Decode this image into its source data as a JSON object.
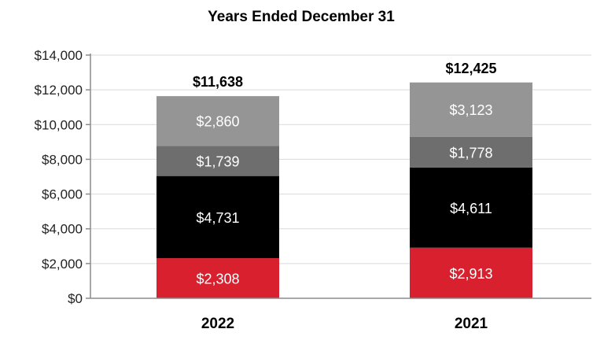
{
  "chart_data": {
    "type": "bar",
    "stacked": true,
    "title": "Years Ended December 31",
    "categories": [
      "2022",
      "2021"
    ],
    "series": [
      {
        "color": "#d9202f",
        "values": [
          2308,
          2913
        ],
        "labels": [
          "$2,308",
          "$2,913"
        ]
      },
      {
        "color": "#000000",
        "values": [
          4731,
          4611
        ],
        "labels": [
          "$4,731",
          "$4,611"
        ]
      },
      {
        "color": "#6e6e6e",
        "values": [
          1739,
          1778
        ],
        "labels": [
          "$1,739",
          "$1,778"
        ]
      },
      {
        "color": "#959595",
        "values": [
          2860,
          3123
        ],
        "labels": [
          "$2,860",
          "$3,123"
        ]
      }
    ],
    "totals": [
      "$11,638",
      "$12,425"
    ],
    "ylim": [
      0,
      14000
    ],
    "yticks": [
      0,
      2000,
      4000,
      6000,
      8000,
      10000,
      12000,
      14000
    ],
    "ytick_labels": [
      "$0",
      "$2,000",
      "$4,000",
      "$6,000",
      "$8,000",
      "$10,000",
      "$12,000",
      "$14,000"
    ],
    "grid": true,
    "legend": "none"
  }
}
